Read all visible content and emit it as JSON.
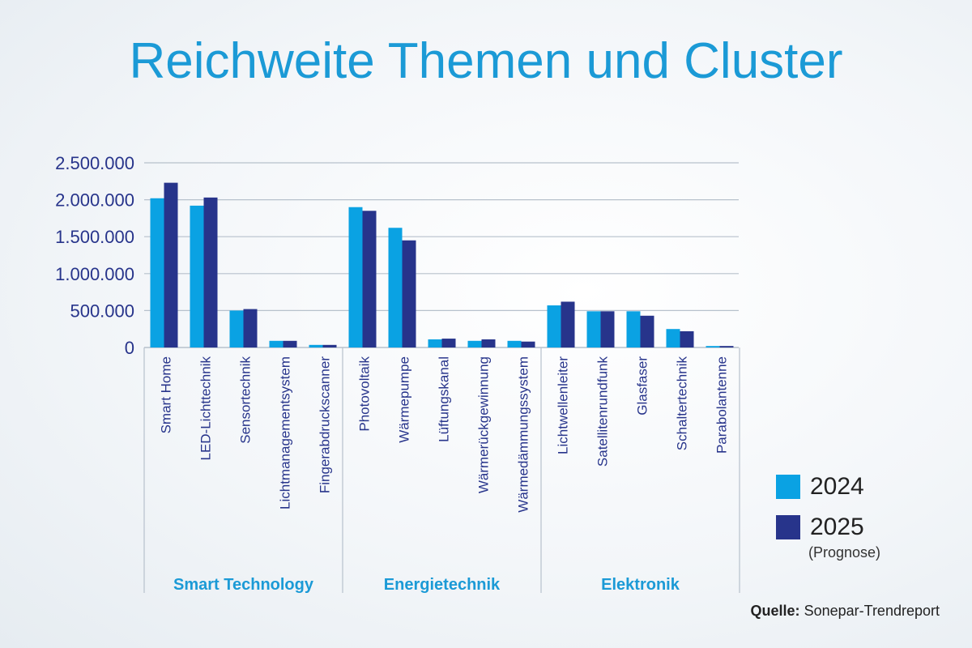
{
  "title": "Reichweite Themen und Cluster",
  "source": {
    "label": "Quelle:",
    "text": "Sonepar-Trendreport"
  },
  "colors": {
    "s2024": "#0aa2e3",
    "s2025": "#27348b",
    "grid": "#b7c1cc",
    "group_label": "#1b9ad6",
    "tick_label": "#27348b"
  },
  "legend": {
    "items": [
      {
        "label": "2024",
        "note": ""
      },
      {
        "label": "2025",
        "note": "(Prognose)"
      }
    ]
  },
  "chart_data": {
    "type": "bar",
    "title": "Reichweite Themen und Cluster",
    "xlabel": "",
    "ylabel": "",
    "ylim": [
      0,
      2500000
    ],
    "yticks": [
      0,
      500000,
      1000000,
      1500000,
      2000000,
      2500000
    ],
    "ytick_labels": [
      "0",
      "500.000",
      "1.000.000",
      "1.500.000",
      "2.000.000",
      "2.500.000"
    ],
    "grid": true,
    "legend_position": "bottom-right",
    "categories": [
      "Smart Home",
      "LED-Lichttechnik",
      "Sensortechnik",
      "Lichtmanagementsystem",
      "Fingerabdruckscanner",
      "Photovoltaik",
      "Wärmepumpe",
      "Lüftungskanal",
      "Wärmerückgewinnung",
      "Wärmedämmungssystem",
      "Lichtwellenleiter",
      "Satellitenrundfunk",
      "Glasfaser",
      "Schaltertechnik",
      "Parabolantenne"
    ],
    "groups": [
      {
        "name": "Smart Technology",
        "count": 5
      },
      {
        "name": "Energietechnik",
        "count": 5
      },
      {
        "name": "Elektronik",
        "count": 5
      }
    ],
    "series": [
      {
        "name": "2024",
        "values": [
          2020000,
          1920000,
          500000,
          90000,
          35000,
          1900000,
          1620000,
          110000,
          90000,
          90000,
          570000,
          490000,
          490000,
          250000,
          20000
        ]
      },
      {
        "name": "2025",
        "values": [
          2230000,
          2030000,
          520000,
          90000,
          35000,
          1850000,
          1450000,
          120000,
          110000,
          80000,
          620000,
          490000,
          430000,
          220000,
          20000
        ]
      }
    ]
  }
}
